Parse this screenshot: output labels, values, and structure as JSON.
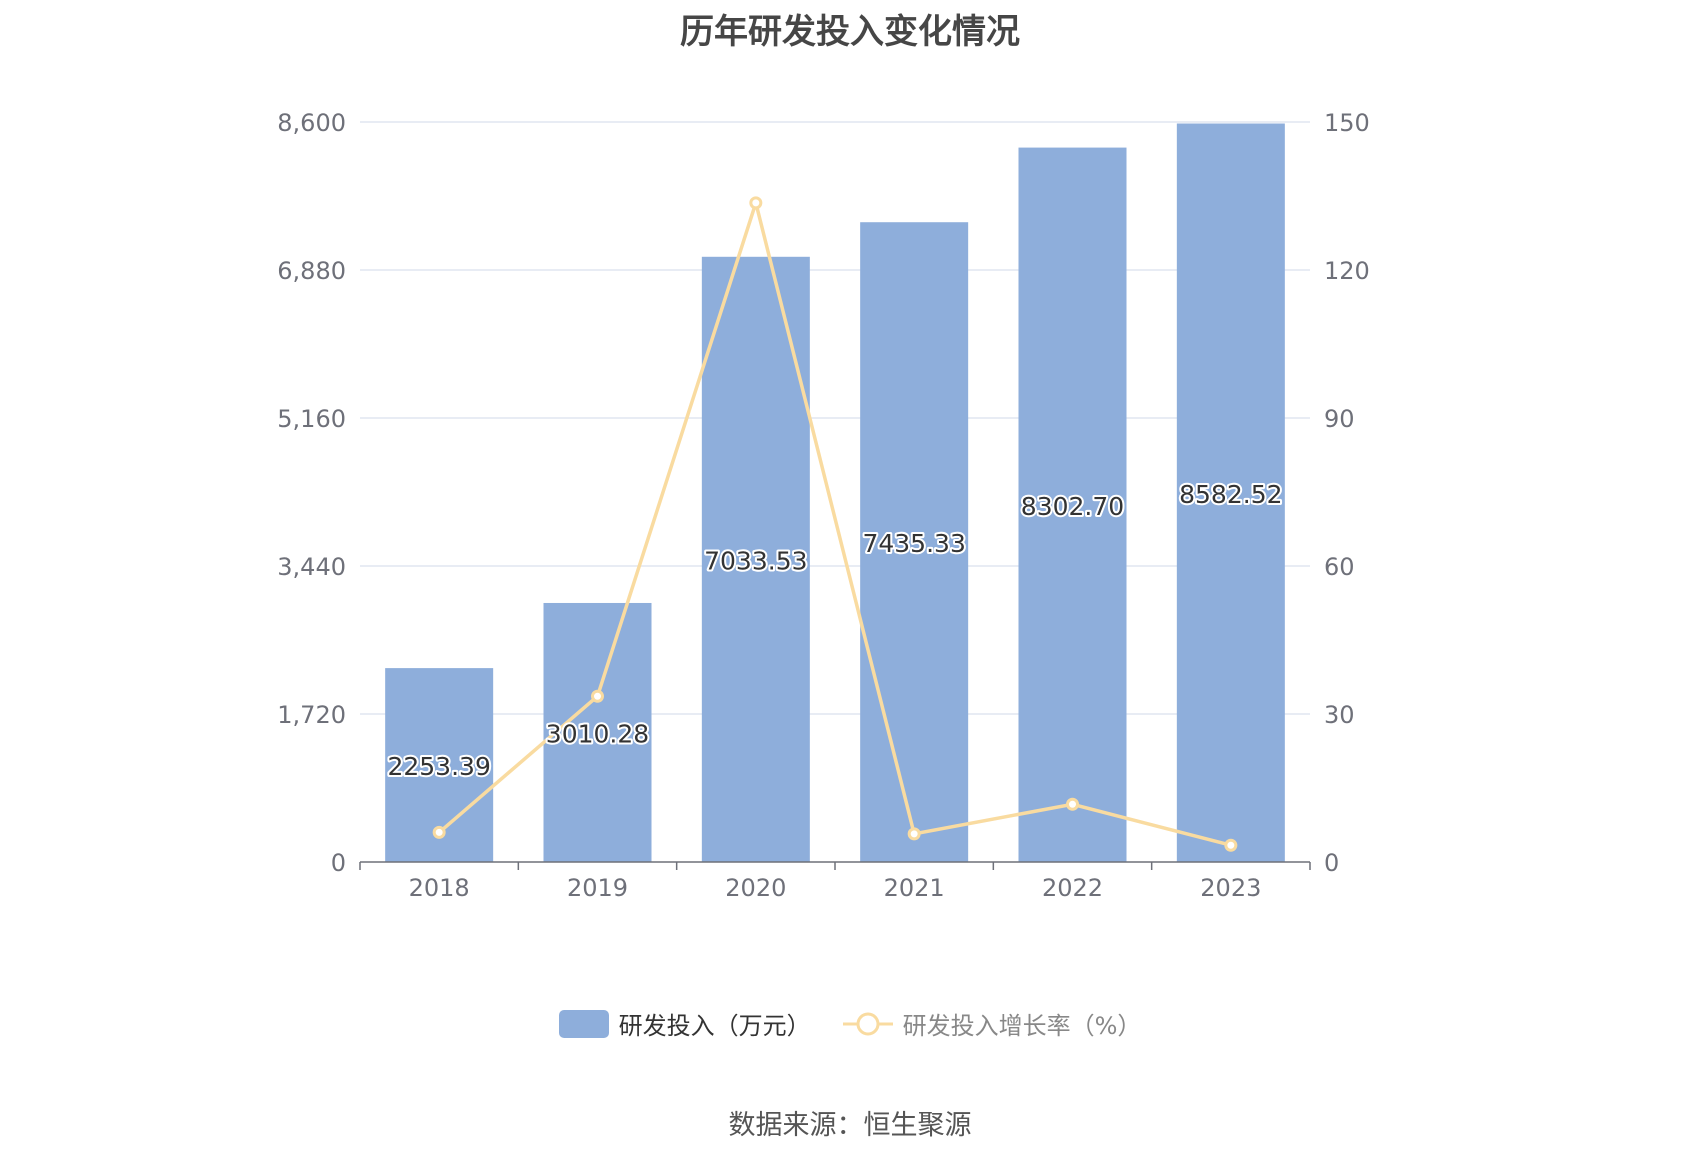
{
  "title": "历年研发投入变化情况",
  "source": "数据来源：恒生聚源",
  "chart_data": {
    "type": "bar",
    "categories": [
      "2018",
      "2019",
      "2020",
      "2021",
      "2022",
      "2023"
    ],
    "series": [
      {
        "name": "研发投入（万元）",
        "type": "bar",
        "axis": "left",
        "values": [
          2253.39,
          3010.28,
          7033.53,
          7435.33,
          8302.7,
          8582.52
        ],
        "labels": [
          "2253.39",
          "3010.28",
          "7033.53",
          "7435.33",
          "8302.70",
          "8582.52"
        ],
        "color": "#8eaedb"
      },
      {
        "name": "研发投入增长率（%）",
        "type": "line",
        "axis": "right",
        "values": [
          6.0,
          33.6,
          133.6,
          5.7,
          11.7,
          3.4
        ],
        "color": "#f9dba0"
      }
    ],
    "y_left": {
      "min": 0,
      "max": 8600,
      "ticks": [
        "0",
        "1,720",
        "3,440",
        "5,160",
        "6,880",
        "8,600"
      ]
    },
    "y_right": {
      "min": 0,
      "max": 150,
      "ticks": [
        "0",
        "30",
        "60",
        "90",
        "120",
        "150"
      ]
    },
    "grid": true,
    "legend_position": "bottom"
  }
}
